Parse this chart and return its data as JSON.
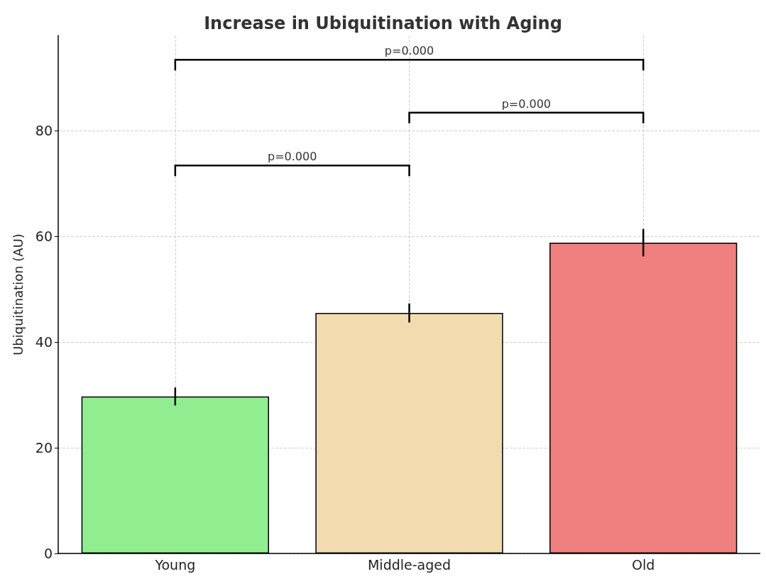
{
  "chart_data": {
    "type": "bar",
    "title": "Increase in Ubiquitination with Aging",
    "ylabel": "Ubiquitination (AU)",
    "categories": [
      "Young",
      "Middle-aged",
      "Old"
    ],
    "values": [
      29.7,
      45.5,
      58.8
    ],
    "errors": [
      1.7,
      1.8,
      2.6
    ],
    "colors": [
      "#90ee90",
      "#f3dbb0",
      "#f08080"
    ],
    "ylim": [
      0,
      98
    ],
    "yticks": [
      0,
      20,
      40,
      60,
      80
    ],
    "grid": true,
    "annotations": [
      "p=0.000",
      "p=0.000",
      "p=0.000"
    ]
  }
}
